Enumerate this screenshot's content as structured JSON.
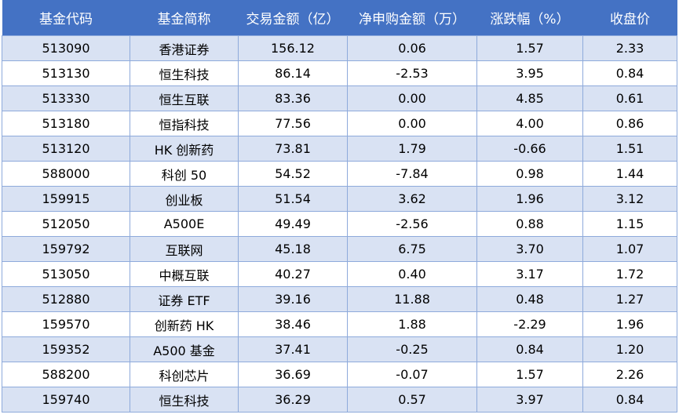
{
  "table": {
    "header": [
      "基金代码",
      "基金简称",
      "交易金额（亿）",
      "净申购金额（万）",
      "涨跌幅（%）",
      "收盘价"
    ],
    "rows": [
      [
        "513090",
        "香港证券",
        "156.12",
        "0.06",
        "1.57",
        "2.33"
      ],
      [
        "513130",
        "恒生科技",
        "86.14",
        "-2.53",
        "3.95",
        "0.84"
      ],
      [
        "513330",
        "恒生互联",
        "83.36",
        "0.00",
        "4.85",
        "0.61"
      ],
      [
        "513180",
        "恒指科技",
        "77.56",
        "0.00",
        "4.00",
        "0.86"
      ],
      [
        "513120",
        "HK 创新药",
        "73.81",
        "1.79",
        "-0.66",
        "1.51"
      ],
      [
        "588000",
        "科创 50",
        "54.52",
        "-7.84",
        "0.98",
        "1.44"
      ],
      [
        "159915",
        "创业板",
        "51.54",
        "3.62",
        "1.96",
        "3.12"
      ],
      [
        "512050",
        "A500E",
        "49.49",
        "-2.56",
        "0.88",
        "1.15"
      ],
      [
        "159792",
        "互联网",
        "45.18",
        "6.75",
        "3.70",
        "1.07"
      ],
      [
        "513050",
        "中概互联",
        "40.27",
        "0.40",
        "3.17",
        "1.72"
      ],
      [
        "512880",
        "证券 ETF",
        "39.16",
        "11.88",
        "0.48",
        "1.27"
      ],
      [
        "159570",
        "创新药 HK",
        "38.46",
        "1.88",
        "-2.29",
        "1.96"
      ],
      [
        "159352",
        "A500 基金",
        "37.41",
        "-0.25",
        "0.84",
        "1.20"
      ],
      [
        "588200",
        "科创芯片",
        "36.69",
        "-0.07",
        "1.57",
        "2.26"
      ],
      [
        "159740",
        "恒生科技",
        "36.29",
        "0.57",
        "3.97",
        "0.84"
      ]
    ]
  }
}
